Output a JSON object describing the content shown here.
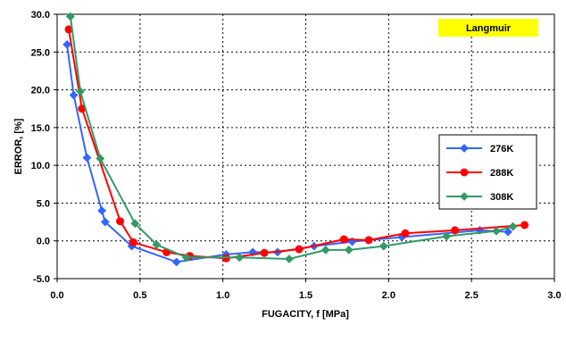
{
  "chart_data": {
    "type": "line",
    "title": "",
    "xlabel": "FUGACITY, f [MPa]",
    "ylabel": "ERROR, [%]",
    "xlim": [
      0.0,
      3.0
    ],
    "ylim": [
      -5.0,
      30.0
    ],
    "x_ticks": [
      0.0,
      0.5,
      1.0,
      1.5,
      2.0,
      2.5,
      3.0
    ],
    "y_ticks": [
      -5.0,
      0.0,
      5.0,
      10.0,
      15.0,
      20.0,
      25.0,
      30.0
    ],
    "x_tick_labels": [
      "0.0",
      "0.5",
      "1.0",
      "1.5",
      "2.0",
      "2.5",
      "3.0"
    ],
    "y_tick_labels": [
      "-5.0",
      "0.0",
      "5.0",
      "10.0",
      "15.0",
      "20.0",
      "25.0",
      "30.0"
    ],
    "grid": true,
    "legend_position": "right",
    "annotation": {
      "text": "Langmuir",
      "background": "#ffff00",
      "position": "top-right"
    },
    "series": [
      {
        "name": "276K",
        "color": "#3366ff",
        "marker": "diamond",
        "x": [
          0.06,
          0.1,
          0.18,
          0.27,
          0.29,
          0.45,
          0.72,
          1.02,
          1.18,
          1.33,
          1.55,
          1.78,
          2.08,
          2.55,
          2.72
        ],
        "y": [
          26.0,
          19.3,
          11.0,
          4.0,
          2.5,
          -0.7,
          -2.8,
          -1.8,
          -1.5,
          -1.5,
          -0.7,
          -0.1,
          0.5,
          1.4,
          1.2
        ]
      },
      {
        "name": "288K",
        "color": "#ff0000",
        "marker": "circle",
        "x": [
          0.07,
          0.15,
          0.38,
          0.46,
          0.66,
          0.8,
          1.02,
          1.25,
          1.46,
          1.73,
          1.88,
          2.1,
          2.4,
          2.82
        ],
        "y": [
          28.0,
          17.5,
          2.6,
          -0.2,
          -1.5,
          -2.0,
          -2.3,
          -1.6,
          -1.1,
          0.2,
          0.1,
          1.0,
          1.4,
          2.1
        ]
      },
      {
        "name": "308K",
        "color": "#339966",
        "marker": "diamond",
        "x": [
          0.08,
          0.14,
          0.26,
          0.47,
          0.6,
          0.78,
          1.1,
          1.4,
          1.62,
          1.76,
          1.97,
          2.35,
          2.65,
          2.75
        ],
        "y": [
          29.7,
          19.8,
          10.9,
          2.3,
          -0.5,
          -2.2,
          -2.2,
          -2.4,
          -1.2,
          -1.2,
          -0.7,
          0.6,
          1.3,
          1.9
        ]
      }
    ]
  }
}
